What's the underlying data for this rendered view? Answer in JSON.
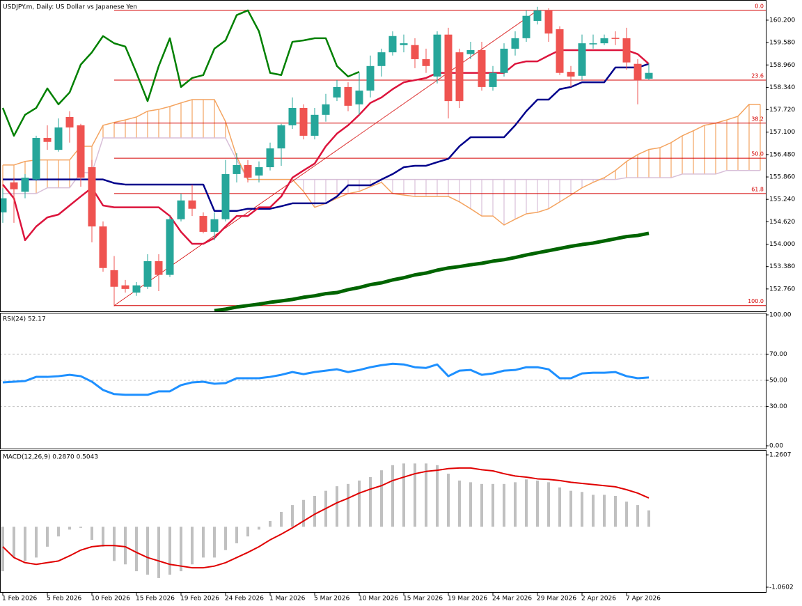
{
  "chart_data": [
    {
      "type": "candlestick",
      "title": "USDJPY.m, Daily:  US Dollar vs Japanese Yen",
      "categories": [
        "1 Feb 2026",
        null,
        null,
        null,
        "5 Feb 2026",
        null,
        null,
        null,
        "10 Feb 2026",
        null,
        null,
        null,
        "15 Feb 2026",
        null,
        null,
        null,
        "19 Feb 2026",
        null,
        null,
        null,
        "24 Feb 2026",
        null,
        null,
        null,
        "1 Mar 2026",
        null,
        null,
        null,
        "5 Mar 2026",
        null,
        null,
        null,
        "10 Mar 2026",
        null,
        null,
        null,
        "15 Mar 2026",
        null,
        null,
        null,
        "19 Mar 2026",
        null,
        null,
        null,
        "24 Mar 2026",
        null,
        null,
        null,
        "29 Mar 2026",
        null,
        null,
        null,
        "2 Apr 2026",
        null,
        null,
        null,
        "7 Apr 2026",
        null,
        null
      ],
      "open": [
        154.88,
        155.71,
        155.45,
        155.79,
        156.94,
        156.61,
        157.52,
        157.29,
        156.13,
        154.49,
        153.28,
        152.86,
        152.66,
        152.82,
        153.53,
        153.15,
        154.69,
        155.21,
        154.78,
        154.34,
        154.69,
        155.94,
        156.19,
        155.9,
        156.13,
        156.65,
        157.29,
        157.77,
        157.0,
        157.58,
        158.06,
        158.35,
        157.87,
        158.25,
        158.93,
        159.31,
        159.51,
        159.51,
        159.12,
        158.64,
        159.8,
        159.31,
        159.26,
        159.37,
        158.35,
        158.74,
        159.41,
        159.7,
        160.18,
        160.47,
        159.95,
        158.77,
        158.66,
        159.53,
        159.56,
        159.71,
        159.7,
        158.99,
        158.58
      ],
      "high": [
        155.55,
        155.84,
        155.94,
        157.0,
        157.29,
        157.48,
        157.68,
        157.33,
        156.33,
        154.63,
        153.67,
        153.01,
        152.95,
        153.72,
        153.72,
        154.78,
        155.4,
        155.65,
        154.88,
        154.88,
        156.33,
        156.52,
        156.33,
        156.29,
        156.81,
        157.33,
        158.06,
        157.87,
        157.77,
        158.16,
        158.54,
        158.48,
        158.74,
        159.22,
        159.41,
        159.89,
        159.8,
        159.7,
        159.41,
        159.89,
        159.99,
        159.41,
        159.6,
        159.6,
        158.93,
        159.56,
        159.89,
        160.47,
        160.57,
        160.53,
        160.03,
        158.93,
        159.8,
        159.8,
        159.8,
        159.89,
        159.99,
        159.12,
        159.02
      ],
      "low": [
        154.59,
        154.59,
        155.27,
        155.75,
        156.61,
        156.56,
        156.81,
        155.59,
        154.05,
        153.24,
        152.28,
        152.66,
        152.57,
        152.76,
        152.7,
        153.09,
        154.63,
        154.78,
        154.3,
        154.11,
        154.63,
        155.71,
        155.71,
        155.71,
        156.04,
        156.17,
        157.19,
        156.9,
        156.9,
        157.39,
        157.96,
        157.68,
        157.58,
        158.06,
        158.64,
        159.22,
        159.31,
        158.87,
        158.74,
        158.45,
        157.48,
        157.77,
        159.12,
        158.25,
        158.25,
        158.64,
        159.22,
        159.6,
        160.08,
        159.6,
        158.68,
        158.35,
        158.54,
        159.41,
        159.51,
        159.51,
        158.83,
        157.87,
        158.54
      ],
      "close": [
        155.27,
        155.52,
        155.84,
        156.94,
        156.83,
        157.23,
        157.23,
        155.84,
        154.49,
        153.34,
        152.82,
        152.76,
        152.86,
        153.53,
        153.15,
        154.69,
        155.21,
        154.98,
        154.34,
        154.69,
        155.94,
        156.19,
        155.84,
        156.13,
        156.65,
        157.29,
        157.77,
        157.0,
        157.58,
        157.87,
        158.35,
        157.83,
        158.25,
        158.93,
        159.31,
        159.76,
        159.56,
        159.12,
        158.93,
        159.8,
        157.96,
        157.96,
        159.37,
        158.35,
        158.74,
        159.41,
        159.7,
        160.32,
        160.47,
        159.83,
        158.74,
        158.64,
        159.56,
        159.56,
        159.7,
        159.68,
        159.03,
        158.54,
        158.74
      ],
      "up_color": "#26a69a",
      "down_color": "#ef5350",
      "ylim": [
        152.14,
        160.7
      ],
      "yticks": [
        {
          "value": 160.2,
          "label": "160.200"
        },
        {
          "value": 159.58,
          "label": "159.580"
        },
        {
          "value": 158.96,
          "label": "158.960"
        },
        {
          "value": 158.34,
          "label": "158.340"
        },
        {
          "value": 157.72,
          "label": "157.720"
        },
        {
          "value": 157.1,
          "label": "157.100"
        },
        {
          "value": 156.48,
          "label": "156.480"
        },
        {
          "value": 155.86,
          "label": "155.860"
        },
        {
          "value": 155.24,
          "label": "155.240"
        },
        {
          "value": 154.62,
          "label": "154.620"
        },
        {
          "value": 154.0,
          "label": "154.000"
        },
        {
          "value": 153.38,
          "label": "153.380"
        },
        {
          "value": 152.76,
          "label": "152.760"
        }
      ],
      "cloud": {
        "up_color": "#f4a460",
        "down_color": "#d8bfd8",
        "span_a": [
          156.19,
          156.19,
          156.29,
          156.33,
          156.33,
          156.33,
          156.33,
          156.71,
          156.71,
          157.29,
          157.37,
          157.44,
          157.52,
          157.68,
          157.73,
          157.81,
          157.91,
          158.0,
          158.0,
          158.0,
          157.39,
          156.42,
          155.79,
          155.79,
          155.79,
          155.79,
          155.79,
          155.46,
          155.02,
          155.13,
          155.27,
          155.4,
          155.46,
          155.59,
          155.71,
          155.4,
          155.36,
          155.32,
          155.32,
          155.32,
          155.32,
          155.17,
          154.98,
          154.78,
          154.78,
          154.53,
          154.69,
          154.84,
          154.88,
          154.98,
          155.17,
          155.36,
          155.56,
          155.71,
          155.84,
          156.04,
          156.29,
          156.48,
          156.62,
          156.67,
          156.81,
          157.0,
          157.14,
          157.29,
          157.35,
          157.44,
          157.54,
          157.87,
          157.87
        ],
        "span_b": [
          155.4,
          155.4,
          155.4,
          155.4,
          155.56,
          155.56,
          155.56,
          155.98,
          155.98,
          156.94,
          156.94,
          156.94,
          156.94,
          156.94,
          156.94,
          156.94,
          156.94,
          156.94,
          156.94,
          156.94,
          156.94,
          156.33,
          155.79,
          155.79,
          155.79,
          155.79,
          155.79,
          155.79,
          155.79,
          155.79,
          155.79,
          155.79,
          155.79,
          155.79,
          155.79,
          155.79,
          155.79,
          155.79,
          155.79,
          155.79,
          155.79,
          155.79,
          155.79,
          155.79,
          155.79,
          155.79,
          155.79,
          155.79,
          155.79,
          155.79,
          155.79,
          155.79,
          155.79,
          155.79,
          155.79,
          155.79,
          155.84,
          155.84,
          155.84,
          155.84,
          155.84,
          155.94,
          155.94,
          155.94,
          155.94,
          156.04,
          156.04,
          156.04,
          156.04
        ]
      },
      "overlays": [
        {
          "color": "#00008b",
          "width": 2.5,
          "values": [
            155.79,
            155.79,
            155.79,
            155.79,
            155.79,
            155.79,
            155.79,
            155.79,
            155.79,
            155.79,
            155.69,
            155.65,
            155.65,
            155.65,
            155.65,
            155.65,
            155.65,
            155.65,
            155.65,
            154.92,
            154.92,
            154.92,
            154.98,
            154.98,
            154.98,
            155.05,
            155.13,
            155.13,
            155.13,
            155.13,
            155.32,
            155.63,
            155.63,
            155.63,
            155.79,
            155.94,
            156.13,
            156.17,
            156.17,
            156.27,
            156.36,
            156.71,
            156.96,
            156.96,
            156.96,
            156.96,
            157.29,
            157.68,
            158.0,
            158.0,
            158.29,
            158.35,
            158.48,
            158.48,
            158.48,
            158.89,
            158.89,
            158.89,
            158.99
          ]
        },
        {
          "color": "#dc143c",
          "width": 2.5,
          "values": [
            155.65,
            155.27,
            154.11,
            154.49,
            154.74,
            154.82,
            155.07,
            155.32,
            155.56,
            155.07,
            155.02,
            155.02,
            155.02,
            155.02,
            155.02,
            154.78,
            154.34,
            154.01,
            154.01,
            154.17,
            154.49,
            154.78,
            154.78,
            155.02,
            155.02,
            155.32,
            155.84,
            156.04,
            156.23,
            156.71,
            157.06,
            157.29,
            157.58,
            157.91,
            158.06,
            158.29,
            158.48,
            158.54,
            158.6,
            158.74,
            158.74,
            158.74,
            158.74,
            158.74,
            158.74,
            158.74,
            158.99,
            159.06,
            159.06,
            159.22,
            159.37,
            159.37,
            159.37,
            159.37,
            159.37,
            159.37,
            159.37,
            159.26,
            158.99
          ]
        },
        {
          "color": "#008000",
          "width": 2.5,
          "values": [
            157.77,
            157.0,
            157.58,
            157.77,
            158.31,
            157.87,
            158.2,
            158.97,
            159.31,
            159.76,
            159.56,
            159.47,
            158.74,
            157.96,
            158.93,
            159.7,
            158.35,
            158.6,
            158.68,
            159.41,
            159.64,
            160.34,
            160.47,
            159.89,
            158.74,
            158.68,
            159.6,
            159.64,
            159.7,
            159.7,
            158.93,
            158.64,
            158.77,
            null,
            null,
            null,
            null,
            null,
            null,
            null,
            null,
            null,
            null,
            null,
            null,
            null,
            null,
            null,
            null,
            null,
            null,
            null,
            null,
            null,
            null,
            null,
            null,
            null,
            null
          ]
        },
        {
          "color": "#006400",
          "width": 5,
          "values": [
            null,
            null,
            null,
            null,
            null,
            null,
            null,
            null,
            null,
            null,
            null,
            null,
            null,
            null,
            null,
            null,
            null,
            null,
            null,
            152.16,
            152.2,
            152.26,
            152.3,
            152.34,
            152.39,
            152.43,
            152.47,
            152.53,
            152.57,
            152.63,
            152.66,
            152.74,
            152.8,
            152.88,
            152.93,
            153.01,
            153.07,
            153.15,
            153.2,
            153.28,
            153.34,
            153.38,
            153.43,
            153.47,
            153.53,
            153.57,
            153.63,
            153.7,
            153.76,
            153.82,
            153.88,
            153.94,
            153.99,
            154.03,
            154.09,
            154.15,
            154.21,
            154.24,
            154.3
          ]
        }
      ],
      "fibonacci": {
        "color": "#d40000",
        "from_index": 10,
        "to_index": 48,
        "levels": [
          {
            "label": "0.0",
            "price": 160.47
          },
          {
            "label": "23.6",
            "price": 158.54
          },
          {
            "label": "38.2",
            "price": 157.35
          },
          {
            "label": "50.0",
            "price": 156.38
          },
          {
            "label": "61.8",
            "price": 155.4
          },
          {
            "label": "100.0",
            "price": 152.3
          }
        ]
      }
    },
    {
      "type": "line",
      "title": "RSI(24) 52.17",
      "color": "#1e90ff",
      "values": [
        48.42,
        48.95,
        49.47,
        52.63,
        52.63,
        53.16,
        54.21,
        53.16,
        48.95,
        42.63,
        39.47,
        38.95,
        38.95,
        38.95,
        41.58,
        41.58,
        46.32,
        48.42,
        48.95,
        47.37,
        47.89,
        51.58,
        51.58,
        51.58,
        52.63,
        54.21,
        56.32,
        54.74,
        56.32,
        57.37,
        58.42,
        56.32,
        57.89,
        60.0,
        61.58,
        62.63,
        62.11,
        60.0,
        59.47,
        62.11,
        53.16,
        57.37,
        57.89,
        54.21,
        55.26,
        57.37,
        57.89,
        60.0,
        60.0,
        58.42,
        51.58,
        51.58,
        55.26,
        55.79,
        55.79,
        56.32,
        53.16,
        51.58,
        52.17
      ],
      "ylim": [
        0,
        100
      ],
      "yticks": [
        {
          "value": 100,
          "label": "100.00"
        },
        {
          "value": 70,
          "label": "70.00"
        },
        {
          "value": 50,
          "label": "50.00"
        },
        {
          "value": 30,
          "label": "30.00"
        },
        {
          "value": 0,
          "label": "0.00"
        }
      ],
      "levels": [
        70,
        50,
        30
      ]
    },
    {
      "type": "macd",
      "title": "MACD(12,26,9) 0.2870 0.5043",
      "histogram": {
        "color": "#c0c0c0",
        "values": [
          -0.78,
          -0.54,
          -0.6,
          -0.54,
          -0.35,
          -0.17,
          -0.05,
          -0.02,
          -0.23,
          -0.35,
          -0.6,
          -0.66,
          -0.78,
          -0.84,
          -0.9,
          -0.84,
          -0.78,
          -0.66,
          -0.54,
          -0.54,
          -0.41,
          -0.29,
          -0.17,
          -0.05,
          0.1,
          0.26,
          0.38,
          0.47,
          0.54,
          0.63,
          0.71,
          0.75,
          0.81,
          0.87,
          0.99,
          1.08,
          1.11,
          1.11,
          1.11,
          1.08,
          0.93,
          0.81,
          0.78,
          0.75,
          0.75,
          0.75,
          0.78,
          0.83,
          0.81,
          0.78,
          0.69,
          0.63,
          0.61,
          0.56,
          0.56,
          0.54,
          0.44,
          0.38,
          0.287
        ]
      },
      "signal": {
        "color": "#e00000",
        "values": [
          -0.35,
          -0.54,
          -0.63,
          -0.66,
          -0.63,
          -0.6,
          -0.51,
          -0.41,
          -0.35,
          -0.33,
          -0.33,
          -0.35,
          -0.45,
          -0.54,
          -0.6,
          -0.66,
          -0.69,
          -0.72,
          -0.72,
          -0.69,
          -0.63,
          -0.54,
          -0.45,
          -0.35,
          -0.23,
          -0.13,
          -0.02,
          0.1,
          0.22,
          0.32,
          0.42,
          0.5,
          0.59,
          0.66,
          0.72,
          0.81,
          0.87,
          0.93,
          0.97,
          0.99,
          1.02,
          1.03,
          1.03,
          1.0,
          0.98,
          0.93,
          0.89,
          0.87,
          0.84,
          0.83,
          0.81,
          0.78,
          0.76,
          0.74,
          0.72,
          0.7,
          0.65,
          0.59,
          0.5043
        ]
      },
      "ylim": [
        -1.0602,
        1.2607
      ],
      "yticks": [
        1.2607,
        -1.0602
      ]
    }
  ]
}
